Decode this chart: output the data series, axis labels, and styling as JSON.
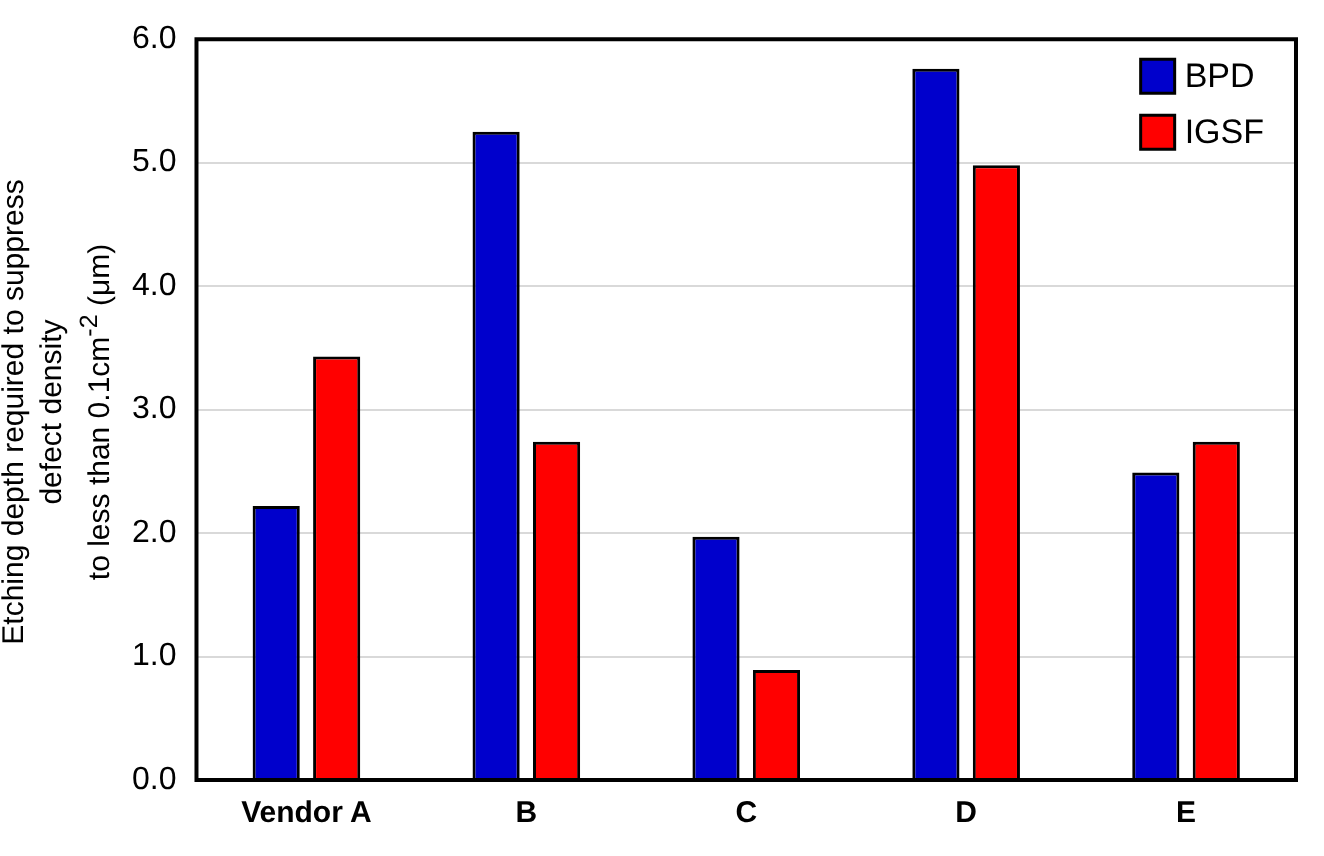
{
  "chart_data": {
    "type": "bar",
    "ylabel": "Etching depth required to suppress defect density to less than 0.1cm$^{-2}$ (μm)",
    "categories": [
      "Vendor A",
      "B",
      "C",
      "D",
      "E"
    ],
    "series": [
      {
        "name": "BPD",
        "color": "#0000cc",
        "values": [
          2.22,
          5.25,
          1.97,
          5.76,
          2.49
        ]
      },
      {
        "name": "IGSF",
        "color": "#ff0000",
        "values": [
          3.43,
          2.74,
          0.89,
          4.98,
          2.74
        ]
      }
    ],
    "ylim": [
      0,
      6
    ],
    "yticks": [
      {
        "value": 0,
        "label": "0.0"
      },
      {
        "value": 1,
        "label": "1.0"
      },
      {
        "value": 2,
        "label": "2.0"
      },
      {
        "value": 3,
        "label": "3.0"
      },
      {
        "value": 4,
        "label": "4.0"
      },
      {
        "value": 5,
        "label": "5.0"
      },
      {
        "value": 6,
        "label": "6.0"
      }
    ],
    "grid": "y",
    "legend": "top right"
  }
}
